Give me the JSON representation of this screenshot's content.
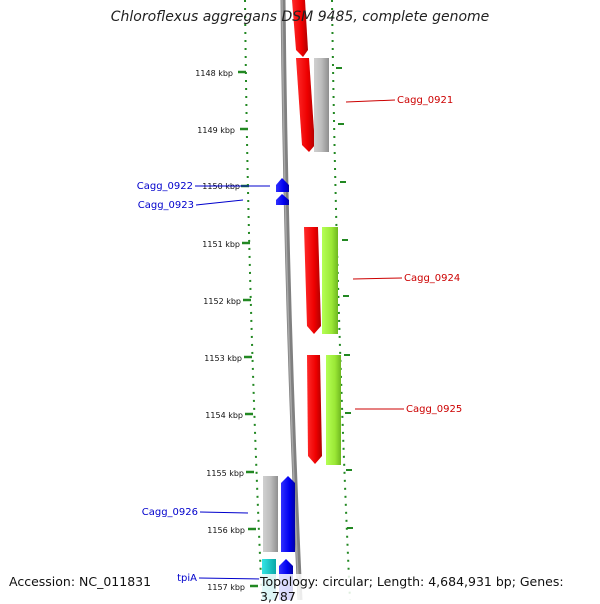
{
  "header": {
    "title": "Chloroflexus aggregans DSM 9485, complete genome"
  },
  "footer": {
    "accession": "Accession: NC_011831",
    "topology": "Topology: circular; Length: 4,684,931 bp; Genes: 3,787"
  },
  "ruler": {
    "ticks": [
      "1148 kbp",
      "1149 kbp",
      "1150 kbp",
      "1151 kbp",
      "1152 kbp",
      "1153 kbp",
      "1154 kbp",
      "1155 kbp",
      "1156 kbp",
      "1157 kbp"
    ]
  },
  "gene_labels": {
    "reverse_strand": [
      "Cagg_0921",
      "Cagg_0924",
      "Cagg_0925"
    ],
    "forward_strand": [
      "Cagg_0922",
      "Cagg_0923",
      "Cagg_0926",
      "tpiA"
    ]
  },
  "colors": {
    "forward_strand_label": "#0000cc",
    "reverse_strand_label": "#cc0000",
    "forward_gene": "#0000ff",
    "reverse_gene": "#ff0000",
    "grey_feature": "#b8b8b8",
    "green_feature": "#99ee33",
    "cyan_feature": "#11cccc",
    "backbone": "#808080",
    "tick_marks": "#228822"
  }
}
